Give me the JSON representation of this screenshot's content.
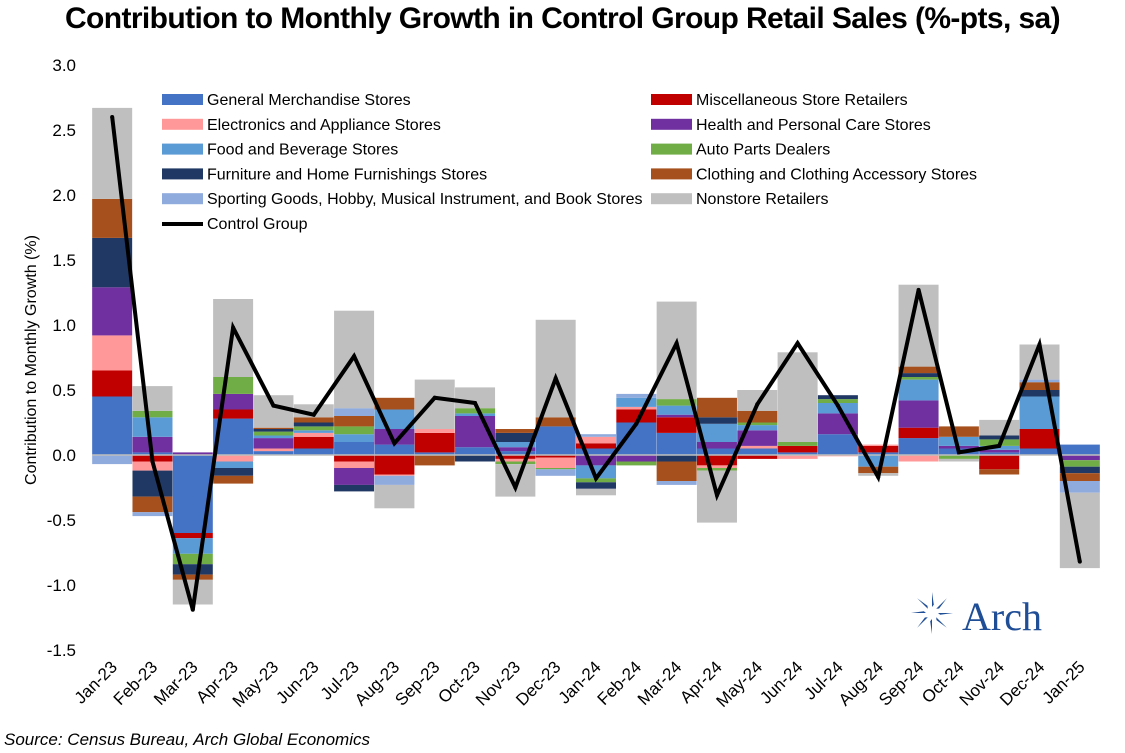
{
  "chart_data": {
    "type": "bar",
    "stacked": true,
    "title": "Contribution to Monthly Growth in Control Group Retail Sales (%-pts, sa)",
    "ylabel": "Contribution to Monthly Growth (%)",
    "xlabel": "",
    "ylim": [
      -1.5,
      3.0
    ],
    "yticks": [
      -1.5,
      -1.0,
      -0.5,
      0.0,
      0.5,
      1.0,
      1.5,
      2.0,
      2.5,
      3.0
    ],
    "ytick_labels": [
      "-1.5",
      "-1.0",
      "-0.5",
      "0.0",
      "0.5",
      "1.0",
      "1.5",
      "2.0",
      "2.5",
      "3.0"
    ],
    "legend_position": "top",
    "categories": [
      "Jan-23",
      "Feb-23",
      "Mar-23",
      "Apr-23",
      "May-23",
      "Jun-23",
      "Jul-23",
      "Aug-23",
      "Sep-23",
      "Oct-23",
      "Nov-23",
      "Dec-23",
      "Jan-24",
      "Feb-24",
      "Mar-24",
      "Apr-24",
      "May-24",
      "Jun-24",
      "Jul-24",
      "Aug-24",
      "Sep-24",
      "Oct-24",
      "Nov-24",
      "Dec-24",
      "Jan-25"
    ],
    "series": [
      {
        "name": "General Merchandise Stores",
        "color": "#4472c4",
        "values": [
          0.45,
          0.02,
          -0.6,
          0.28,
          0.03,
          0.05,
          0.1,
          0.08,
          0.02,
          0.06,
          0.03,
          0.22,
          0.05,
          0.25,
          0.17,
          0.05,
          0.05,
          0.02,
          0.16,
          0.02,
          0.13,
          0.05,
          0.02,
          0.05,
          0.08
        ]
      },
      {
        "name": "Miscellaneous Store Retailers",
        "color": "#c00000",
        "values": [
          0.2,
          -0.05,
          -0.04,
          0.07,
          0.0,
          0.09,
          -0.05,
          -0.15,
          0.15,
          0.0,
          -0.03,
          -0.02,
          0.04,
          0.1,
          0.12,
          -0.08,
          -0.03,
          0.05,
          0.0,
          0.05,
          0.08,
          0.0,
          -0.11,
          0.15,
          0.0
        ]
      },
      {
        "name": "Electronics and Appliance Stores",
        "color": "#ff9999",
        "values": [
          0.27,
          -0.07,
          0.0,
          -0.05,
          0.02,
          0.03,
          -0.05,
          -0.01,
          0.03,
          0.0,
          -0.02,
          -0.08,
          0.05,
          0.02,
          0.0,
          -0.02,
          0.02,
          -0.03,
          -0.01,
          0.01,
          -0.05,
          0.0,
          0.0,
          0.0,
          0.0
        ]
      },
      {
        "name": "Health and Personal Care Stores",
        "color": "#7030a0",
        "values": [
          0.37,
          0.12,
          0.02,
          0.12,
          0.08,
          0.0,
          -0.13,
          0.12,
          0.0,
          0.24,
          0.03,
          0.0,
          -0.08,
          -0.05,
          0.02,
          0.05,
          0.12,
          0.0,
          0.16,
          0.0,
          0.21,
          0.02,
          0.02,
          0.0,
          -0.04
        ]
      },
      {
        "name": "Food and Beverage Stores",
        "color": "#5b9bd5",
        "values": [
          0.0,
          0.15,
          -0.12,
          -0.05,
          0.02,
          0.02,
          0.06,
          0.15,
          0.0,
          0.02,
          0.04,
          0.0,
          -0.1,
          0.07,
          0.07,
          0.14,
          0.04,
          0.0,
          0.08,
          -0.09,
          0.16,
          0.07,
          0.03,
          0.25,
          0.0
        ]
      },
      {
        "name": "Auto Parts Dealers",
        "color": "#70ad47",
        "values": [
          0.0,
          0.05,
          -0.08,
          0.13,
          0.03,
          0.03,
          0.06,
          0.0,
          0.0,
          0.04,
          -0.02,
          -0.01,
          -0.03,
          -0.03,
          0.05,
          -0.02,
          0.02,
          0.03,
          0.03,
          0.0,
          0.02,
          -0.03,
          0.05,
          0.0,
          -0.05
        ]
      },
      {
        "name": "Furniture and Home Furnishings Stores",
        "color": "#203864",
        "values": [
          0.38,
          -0.2,
          -0.08,
          -0.06,
          0.02,
          0.03,
          -0.05,
          0.0,
          0.0,
          -0.05,
          0.07,
          0.0,
          -0.05,
          0.0,
          -0.05,
          0.05,
          0.0,
          0.0,
          0.03,
          0.0,
          0.03,
          0.0,
          0.03,
          0.05,
          -0.05
        ]
      },
      {
        "name": "Clothing and Clothing Accessory Stores",
        "color": "#a5501d",
        "values": [
          0.3,
          -0.12,
          -0.04,
          -0.06,
          0.01,
          0.04,
          0.08,
          0.09,
          -0.08,
          0.0,
          0.03,
          0.07,
          0.0,
          0.0,
          -0.15,
          0.15,
          0.09,
          0.0,
          0.0,
          -0.05,
          0.05,
          0.08,
          -0.04,
          0.06,
          -0.06
        ]
      },
      {
        "name": "Sporting Goods, Hobby, Musical Instrument, and Book Stores",
        "color": "#8faadc",
        "values": [
          -0.07,
          -0.03,
          0.0,
          0.0,
          0.0,
          0.0,
          0.06,
          -0.07,
          0.0,
          0.0,
          0.0,
          -0.05,
          0.02,
          0.03,
          -0.03,
          0.0,
          0.0,
          0.0,
          0.0,
          0.0,
          0.0,
          0.0,
          0.0,
          0.02,
          -0.09
        ]
      },
      {
        "name": "Nonstore Retailers",
        "color": "#bfbfbf",
        "values": [
          0.7,
          0.19,
          -0.19,
          0.6,
          0.25,
          0.1,
          0.75,
          -0.18,
          0.38,
          0.16,
          -0.25,
          0.75,
          -0.05,
          0.0,
          0.75,
          -0.4,
          0.16,
          0.69,
          0.0,
          -0.02,
          0.63,
          -0.02,
          0.12,
          0.27,
          -0.58
        ]
      },
      {
        "name": "Control Group",
        "type": "line",
        "color": "#000000",
        "values": [
          2.6,
          -0.05,
          -1.19,
          0.98,
          0.38,
          0.31,
          0.76,
          0.09,
          0.44,
          0.4,
          -0.25,
          0.59,
          -0.18,
          0.24,
          0.86,
          -0.31,
          0.39,
          0.86,
          0.38,
          -0.17,
          1.27,
          0.02,
          0.07,
          0.85,
          -0.82
        ]
      }
    ]
  },
  "source": "Source: Census Bureau, Arch Global Economics",
  "logo": {
    "text": "Arch",
    "color": "#1f4e96"
  }
}
